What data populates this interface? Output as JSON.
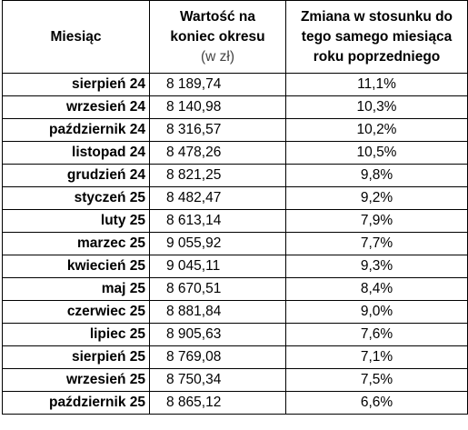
{
  "table": {
    "headers": {
      "month": "Miesiąc",
      "value_line1": "Wartość na",
      "value_line2": "koniec okresu",
      "value_unit": "(w zł)",
      "change_line1": "Zmiana w stosunku do",
      "change_line2": "tego samego miesiąca",
      "change_line3": "roku poprzedniego"
    },
    "rows": [
      {
        "month": "sierpień 24",
        "value": "8 189,74",
        "change": "11,1%"
      },
      {
        "month": "wrzesień 24",
        "value": "8 140,98",
        "change": "10,3%"
      },
      {
        "month": "październik 24",
        "value": "8 316,57",
        "change": "10,2%"
      },
      {
        "month": "listopad 24",
        "value": "8 478,26",
        "change": "10,5%"
      },
      {
        "month": "grudzień 24",
        "value": "8 821,25",
        "change": "9,8%"
      },
      {
        "month": "styczeń 25",
        "value": "8 482,47",
        "change": "9,2%"
      },
      {
        "month": "luty 25",
        "value": "8 613,14",
        "change": "7,9%"
      },
      {
        "month": "marzec 25",
        "value": "9 055,92",
        "change": "7,7%"
      },
      {
        "month": "kwiecień 25",
        "value": "9 045,11",
        "change": "9,3%"
      },
      {
        "month": "maj 25",
        "value": "8 670,51",
        "change": "8,4%"
      },
      {
        "month": "czerwiec 25",
        "value": "8 881,84",
        "change": "9,0%"
      },
      {
        "month": "lipiec 25",
        "value": "8 905,63",
        "change": "7,6%"
      },
      {
        "month": "sierpień 25",
        "value": "8 769,08",
        "change": "7,1%"
      },
      {
        "month": "wrzesień 25",
        "value": "8 750,34",
        "change": "7,5%"
      },
      {
        "month": "październik 25",
        "value": "8 865,12",
        "change": "6,6%"
      }
    ]
  }
}
